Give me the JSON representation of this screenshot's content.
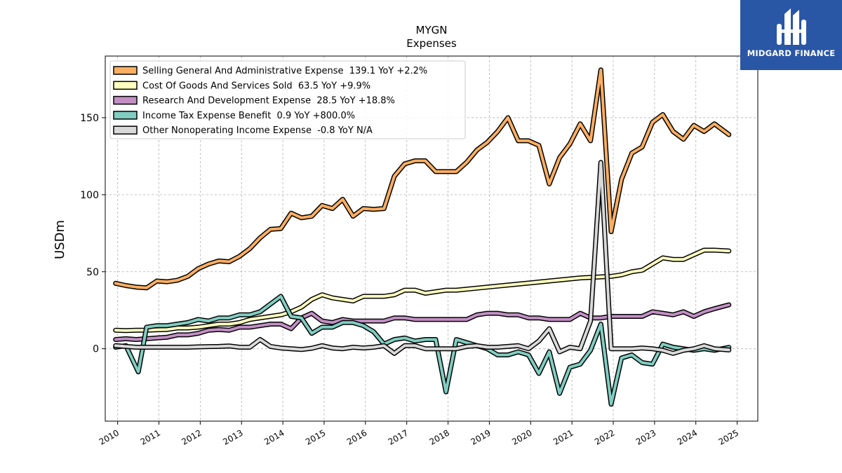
{
  "header": {
    "title": "MYGN",
    "subtitle": "Expenses"
  },
  "logo": {
    "text": "MIDGARD FINANCE",
    "bg": "#2a56a6"
  },
  "chart_data": {
    "type": "line",
    "title": "MYGN",
    "subtitle": "Expenses",
    "ylabel": "USDm",
    "xlabel": "",
    "xlim": [
      2009.7,
      2025.5
    ],
    "ylim": [
      -47,
      190
    ],
    "x_ticks": [
      2010,
      2011,
      2012,
      2013,
      2014,
      2015,
      2016,
      2017,
      2018,
      2019,
      2020,
      2021,
      2022,
      2023,
      2024,
      2025
    ],
    "y_ticks": [
      0,
      50,
      100,
      150
    ],
    "grid": true,
    "legend_position": "top-left",
    "series": [
      {
        "name": "Selling General And Administrative Expense  139.1 YoY +2.2%",
        "color": "#fdae61",
        "points": [
          [
            2009.95,
            42.5
          ],
          [
            2010.2,
            41
          ],
          [
            2010.45,
            40
          ],
          [
            2010.7,
            39.5
          ],
          [
            2010.95,
            44
          ],
          [
            2011.2,
            43.5
          ],
          [
            2011.45,
            44.5
          ],
          [
            2011.7,
            47
          ],
          [
            2011.95,
            52
          ],
          [
            2012.2,
            55
          ],
          [
            2012.45,
            57
          ],
          [
            2012.7,
            56.5
          ],
          [
            2012.95,
            60
          ],
          [
            2013.2,
            65
          ],
          [
            2013.45,
            72
          ],
          [
            2013.7,
            77.5
          ],
          [
            2013.95,
            78
          ],
          [
            2014.2,
            88
          ],
          [
            2014.45,
            85
          ],
          [
            2014.7,
            86
          ],
          [
            2014.95,
            93
          ],
          [
            2015.2,
            91
          ],
          [
            2015.45,
            97
          ],
          [
            2015.7,
            86
          ],
          [
            2015.95,
            91
          ],
          [
            2016.2,
            90.5
          ],
          [
            2016.45,
            91
          ],
          [
            2016.7,
            112
          ],
          [
            2016.95,
            120
          ],
          [
            2017.2,
            122
          ],
          [
            2017.45,
            122
          ],
          [
            2017.7,
            115
          ],
          [
            2017.95,
            115
          ],
          [
            2018.2,
            115
          ],
          [
            2018.45,
            121
          ],
          [
            2018.7,
            129
          ],
          [
            2018.95,
            134
          ],
          [
            2019.2,
            141
          ],
          [
            2019.45,
            150
          ],
          [
            2019.7,
            135
          ],
          [
            2019.95,
            135
          ],
          [
            2020.2,
            132
          ],
          [
            2020.45,
            107
          ],
          [
            2020.7,
            124
          ],
          [
            2020.95,
            133
          ],
          [
            2021.2,
            146
          ],
          [
            2021.45,
            135
          ],
          [
            2021.7,
            181
          ],
          [
            2021.95,
            76
          ],
          [
            2022.2,
            110
          ],
          [
            2022.45,
            127
          ],
          [
            2022.7,
            131
          ],
          [
            2022.95,
            147
          ],
          [
            2023.2,
            152
          ],
          [
            2023.45,
            141
          ],
          [
            2023.7,
            136
          ],
          [
            2023.95,
            145
          ],
          [
            2024.2,
            141
          ],
          [
            2024.45,
            146
          ],
          [
            2024.8,
            139
          ]
        ]
      },
      {
        "name": "Cost Of Goods And Services Sold  63.5 YoY +9.9%",
        "color": "#ffffbf",
        "points": [
          [
            2009.95,
            12
          ],
          [
            2010.2,
            11.8
          ],
          [
            2010.45,
            12
          ],
          [
            2010.7,
            12
          ],
          [
            2010.95,
            12.3
          ],
          [
            2011.2,
            12.5
          ],
          [
            2011.45,
            13.5
          ],
          [
            2011.7,
            13.5
          ],
          [
            2011.95,
            14
          ],
          [
            2012.2,
            15
          ],
          [
            2012.45,
            16
          ],
          [
            2012.7,
            16
          ],
          [
            2012.95,
            17
          ],
          [
            2013.2,
            19
          ],
          [
            2013.45,
            20
          ],
          [
            2013.7,
            21
          ],
          [
            2013.95,
            22
          ],
          [
            2014.2,
            24
          ],
          [
            2014.45,
            27
          ],
          [
            2014.7,
            32
          ],
          [
            2014.95,
            35
          ],
          [
            2015.2,
            33
          ],
          [
            2015.45,
            32
          ],
          [
            2015.7,
            31
          ],
          [
            2015.95,
            34
          ],
          [
            2016.2,
            34
          ],
          [
            2016.45,
            34
          ],
          [
            2016.7,
            35
          ],
          [
            2016.95,
            38
          ],
          [
            2017.2,
            38
          ],
          [
            2017.45,
            36
          ],
          [
            2017.7,
            37
          ],
          [
            2017.95,
            38
          ],
          [
            2018.2,
            38
          ],
          [
            2018.95,
            40
          ],
          [
            2019.7,
            42
          ],
          [
            2020.45,
            44
          ],
          [
            2021.2,
            46
          ],
          [
            2021.95,
            47
          ],
          [
            2022.2,
            48
          ],
          [
            2022.45,
            50
          ],
          [
            2022.7,
            51
          ],
          [
            2022.95,
            55
          ],
          [
            2023.2,
            59
          ],
          [
            2023.45,
            58
          ],
          [
            2023.7,
            58
          ],
          [
            2023.95,
            61
          ],
          [
            2024.2,
            64
          ],
          [
            2024.45,
            64
          ],
          [
            2024.8,
            63.5
          ]
        ]
      },
      {
        "name": "Research And Development Expense  28.5 YoY +18.8%",
        "color": "#c28fc4",
        "points": [
          [
            2009.95,
            6
          ],
          [
            2010.2,
            6.5
          ],
          [
            2010.45,
            6
          ],
          [
            2010.7,
            6.5
          ],
          [
            2010.95,
            7
          ],
          [
            2011.2,
            7.5
          ],
          [
            2011.45,
            9
          ],
          [
            2011.7,
            9
          ],
          [
            2011.95,
            10
          ],
          [
            2012.2,
            12
          ],
          [
            2012.45,
            12.5
          ],
          [
            2012.7,
            12
          ],
          [
            2012.95,
            14
          ],
          [
            2013.2,
            14
          ],
          [
            2013.45,
            15
          ],
          [
            2013.7,
            16
          ],
          [
            2013.95,
            16
          ],
          [
            2014.2,
            13
          ],
          [
            2014.45,
            20
          ],
          [
            2014.7,
            23
          ],
          [
            2014.95,
            18
          ],
          [
            2015.2,
            17
          ],
          [
            2015.45,
            19
          ],
          [
            2015.7,
            18
          ],
          [
            2015.95,
            18
          ],
          [
            2016.2,
            18
          ],
          [
            2016.45,
            18
          ],
          [
            2016.7,
            20
          ],
          [
            2016.95,
            20
          ],
          [
            2017.2,
            19
          ],
          [
            2017.45,
            19
          ],
          [
            2017.7,
            19
          ],
          [
            2017.95,
            19
          ],
          [
            2018.2,
            19
          ],
          [
            2018.45,
            19
          ],
          [
            2018.7,
            22
          ],
          [
            2018.95,
            23
          ],
          [
            2019.2,
            23
          ],
          [
            2019.45,
            22
          ],
          [
            2019.7,
            22
          ],
          [
            2019.95,
            20
          ],
          [
            2020.2,
            20
          ],
          [
            2020.45,
            19
          ],
          [
            2020.7,
            19
          ],
          [
            2020.95,
            19
          ],
          [
            2021.2,
            23
          ],
          [
            2021.45,
            20
          ],
          [
            2021.7,
            20
          ],
          [
            2021.95,
            21
          ],
          [
            2022.2,
            21
          ],
          [
            2022.45,
            21
          ],
          [
            2022.7,
            21
          ],
          [
            2022.95,
            24
          ],
          [
            2023.2,
            23
          ],
          [
            2023.45,
            22
          ],
          [
            2023.7,
            24
          ],
          [
            2023.95,
            21
          ],
          [
            2024.2,
            24
          ],
          [
            2024.45,
            26
          ],
          [
            2024.8,
            28.5
          ]
        ]
      },
      {
        "name": "Income Tax Expense Benefit  0.9 YoY +800.0%",
        "color": "#80cdc1",
        "points": [
          [
            2009.95,
            1
          ],
          [
            2010.2,
            2
          ],
          [
            2010.5,
            -15
          ],
          [
            2010.7,
            14
          ],
          [
            2010.95,
            15
          ],
          [
            2011.2,
            15
          ],
          [
            2011.45,
            16
          ],
          [
            2011.7,
            17
          ],
          [
            2011.95,
            19
          ],
          [
            2012.2,
            18
          ],
          [
            2012.45,
            20
          ],
          [
            2012.7,
            20
          ],
          [
            2012.95,
            22
          ],
          [
            2013.2,
            22
          ],
          [
            2013.45,
            24
          ],
          [
            2013.7,
            29
          ],
          [
            2013.95,
            34
          ],
          [
            2014.2,
            21
          ],
          [
            2014.45,
            20
          ],
          [
            2014.7,
            10
          ],
          [
            2014.95,
            14
          ],
          [
            2015.2,
            14
          ],
          [
            2015.45,
            17
          ],
          [
            2015.7,
            17
          ],
          [
            2015.95,
            15
          ],
          [
            2016.2,
            11
          ],
          [
            2016.45,
            3
          ],
          [
            2016.7,
            6
          ],
          [
            2016.95,
            7
          ],
          [
            2017.2,
            5
          ],
          [
            2017.45,
            6
          ],
          [
            2017.7,
            6
          ],
          [
            2017.95,
            -28
          ],
          [
            2018.2,
            6
          ],
          [
            2018.45,
            4
          ],
          [
            2018.7,
            2
          ],
          [
            2018.95,
            0
          ],
          [
            2019.2,
            -4
          ],
          [
            2019.45,
            -4
          ],
          [
            2019.7,
            -2
          ],
          [
            2019.95,
            -4
          ],
          [
            2020.2,
            -16
          ],
          [
            2020.45,
            -2
          ],
          [
            2020.7,
            -29
          ],
          [
            2020.95,
            -12
          ],
          [
            2021.2,
            -10
          ],
          [
            2021.45,
            -1
          ],
          [
            2021.7,
            16
          ],
          [
            2021.95,
            -36
          ],
          [
            2022.2,
            -6
          ],
          [
            2022.45,
            -4
          ],
          [
            2022.7,
            -9
          ],
          [
            2022.95,
            -10
          ],
          [
            2023.2,
            3
          ],
          [
            2023.45,
            1
          ],
          [
            2023.7,
            0
          ],
          [
            2023.95,
            -1
          ],
          [
            2024.2,
            0
          ],
          [
            2024.45,
            -1
          ],
          [
            2024.8,
            0.9
          ]
        ]
      },
      {
        "name": "Other Nonoperating Income Expense  -0.8 YoY N/A",
        "color": "#d9d9d9",
        "points": [
          [
            2009.95,
            2
          ],
          [
            2010.2,
            1.5
          ],
          [
            2010.45,
            1
          ],
          [
            2010.7,
            1
          ],
          [
            2010.95,
            1
          ],
          [
            2011.2,
            1
          ],
          [
            2011.45,
            1
          ],
          [
            2011.7,
            1
          ],
          [
            2011.95,
            1.2
          ],
          [
            2012.2,
            1.4
          ],
          [
            2012.45,
            1.5
          ],
          [
            2012.7,
            1.8
          ],
          [
            2012.95,
            1
          ],
          [
            2013.2,
            1
          ],
          [
            2013.45,
            6
          ],
          [
            2013.7,
            1.5
          ],
          [
            2013.95,
            0.5
          ],
          [
            2014.2,
            0
          ],
          [
            2014.45,
            -0.5
          ],
          [
            2014.7,
            0.3
          ],
          [
            2014.95,
            2
          ],
          [
            2015.2,
            0.5
          ],
          [
            2015.45,
            0
          ],
          [
            2015.7,
            1
          ],
          [
            2015.95,
            0.5
          ],
          [
            2016.2,
            1
          ],
          [
            2016.45,
            2
          ],
          [
            2016.7,
            -3
          ],
          [
            2016.95,
            2
          ],
          [
            2017.2,
            2
          ],
          [
            2017.45,
            0
          ],
          [
            2017.7,
            0
          ],
          [
            2017.95,
            0
          ],
          [
            2018.2,
            0
          ],
          [
            2018.45,
            1.5
          ],
          [
            2018.7,
            2
          ],
          [
            2018.95,
            1
          ],
          [
            2019.2,
            1
          ],
          [
            2019.45,
            1.5
          ],
          [
            2019.7,
            2
          ],
          [
            2019.95,
            0
          ],
          [
            2020.2,
            5
          ],
          [
            2020.45,
            13
          ],
          [
            2020.7,
            -2
          ],
          [
            2020.95,
            1
          ],
          [
            2021.2,
            0
          ],
          [
            2021.45,
            18
          ],
          [
            2021.7,
            121
          ],
          [
            2021.95,
            0
          ],
          [
            2022.2,
            0
          ],
          [
            2022.45,
            0
          ],
          [
            2022.7,
            0.5
          ],
          [
            2022.95,
            0
          ],
          [
            2023.2,
            -1
          ],
          [
            2023.45,
            -3
          ],
          [
            2023.7,
            -1
          ],
          [
            2023.95,
            0
          ],
          [
            2024.2,
            2
          ],
          [
            2024.45,
            0
          ],
          [
            2024.8,
            -0.8
          ]
        ]
      }
    ]
  }
}
